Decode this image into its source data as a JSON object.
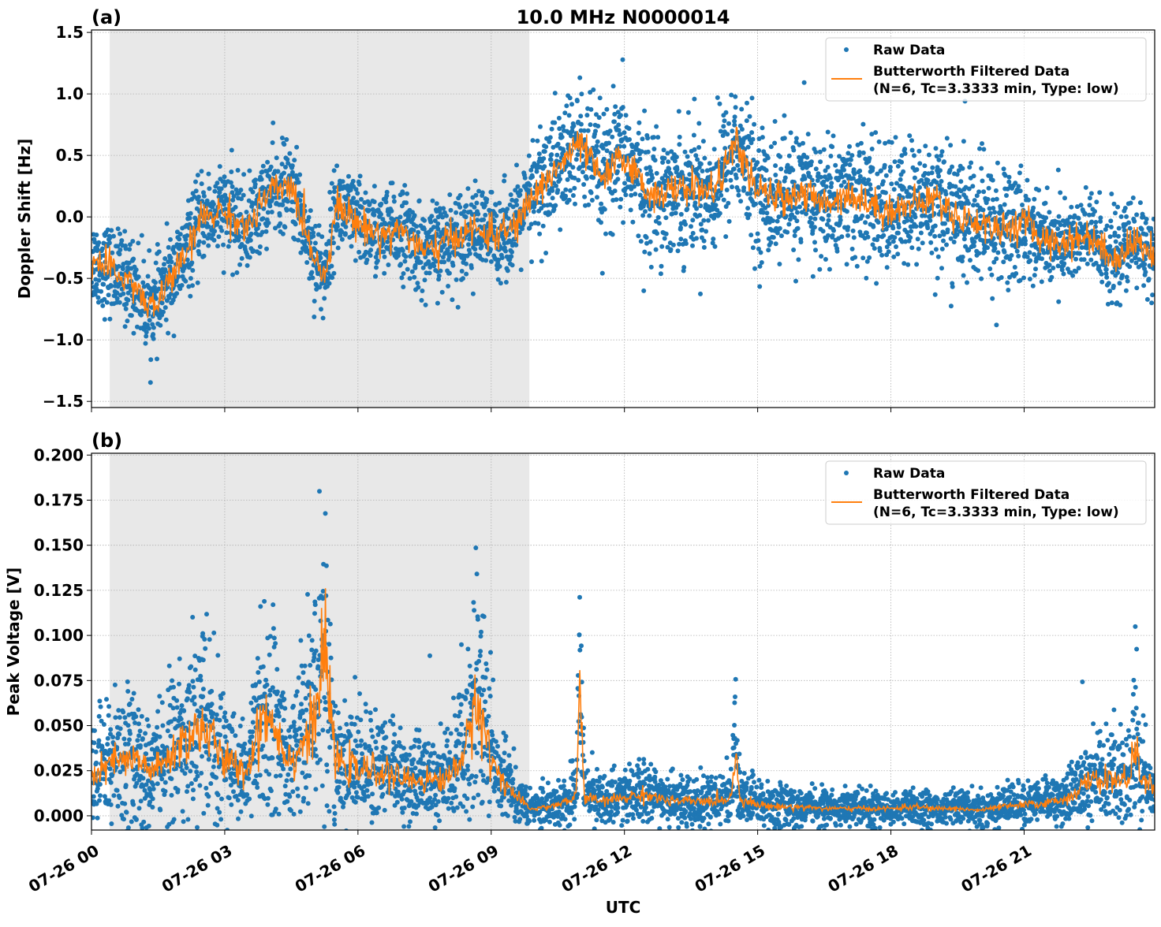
{
  "chart_data": [
    {
      "type": "scatter",
      "panel_label": "(a)",
      "title": "10.0 MHz N0000014",
      "xlabel": "",
      "ylabel": "Doppler Shift [Hz]",
      "xlim_hours_utc": [
        0,
        23.94
      ],
      "ylim": [
        -1.55,
        1.52
      ],
      "yticks": [
        -1.5,
        -1.0,
        -0.5,
        0.0,
        0.5,
        1.0,
        1.5
      ],
      "ytick_labels": [
        "−1.5",
        "−1.0",
        "−0.5",
        "0.0",
        "0.5",
        "1.0",
        "1.5"
      ],
      "grid": true,
      "shaded_span_hours_utc": [
        0.41,
        9.86
      ],
      "legend": {
        "placement": "top-right",
        "entries": [
          "Raw Data",
          "Butterworth Filtered Data",
          "(N=6, Tc=3.3333 min, Type: low)"
        ]
      },
      "raw_spread": 0.22,
      "filtered": {
        "x_hours_utc": [
          0,
          0.5,
          1,
          1.25,
          1.5,
          1.75,
          2,
          2.5,
          3,
          3.5,
          4,
          4.5,
          5,
          5.25,
          5.5,
          6,
          6.5,
          7,
          7.5,
          8,
          8.5,
          9,
          9.5,
          10,
          10.5,
          11,
          11.5,
          12,
          12.5,
          13,
          13.5,
          14,
          14.5,
          15,
          15.5,
          16,
          16.5,
          17,
          17.5,
          18,
          18.5,
          19,
          19.5,
          20,
          20.5,
          21,
          21.5,
          22,
          22.5,
          23,
          23.5,
          23.94
        ],
        "values": [
          -0.35,
          -0.45,
          -0.55,
          -0.75,
          -0.7,
          -0.5,
          -0.4,
          0.0,
          0.05,
          -0.1,
          0.2,
          0.25,
          -0.3,
          -0.5,
          0.1,
          -0.05,
          -0.15,
          -0.1,
          -0.3,
          -0.2,
          -0.1,
          -0.15,
          -0.1,
          0.2,
          0.4,
          0.6,
          0.3,
          0.5,
          0.2,
          0.2,
          0.25,
          0.2,
          0.6,
          0.2,
          0.15,
          0.2,
          0.1,
          0.2,
          0.1,
          0.05,
          0.1,
          0.15,
          0.0,
          -0.05,
          -0.1,
          -0.05,
          -0.2,
          -0.2,
          -0.15,
          -0.35,
          -0.2,
          -0.3
        ]
      },
      "series": [
        {
          "name": "Raw Data",
          "color": "#1f77b4",
          "style": "points"
        },
        {
          "name": "Butterworth Filtered Data (N=6, Tc=3.3333 min, Type: low)",
          "color": "#ff7f0e",
          "style": "line"
        }
      ]
    },
    {
      "type": "scatter",
      "panel_label": "(b)",
      "title": "",
      "xlabel": "UTC",
      "ylabel": "Peak Voltage [V]",
      "xlim_hours_utc": [
        0,
        23.94
      ],
      "ylim": [
        -0.0079,
        0.201
      ],
      "yticks": [
        0,
        0.025,
        0.05,
        0.075,
        0.1,
        0.125,
        0.15,
        0.175,
        0.2
      ],
      "ytick_labels": [
        "0.000",
        "0.025",
        "0.050",
        "0.075",
        "0.100",
        "0.125",
        "0.150",
        "0.175",
        "0.200"
      ],
      "xticks_hours_utc": [
        0,
        3,
        6,
        9,
        12,
        15,
        18,
        21
      ],
      "xtick_labels": [
        "07-26 00",
        "07-26 03",
        "07-26 06",
        "07-26 09",
        "07-26 12",
        "07-26 15",
        "07-26 18",
        "07-26 21"
      ],
      "grid": true,
      "shaded_span_hours_utc": [
        0.41,
        9.86
      ],
      "legend": {
        "placement": "top-right",
        "entries": [
          "Raw Data",
          "Butterworth Filtered Data",
          "(N=6, Tc=3.3333 min, Type: low)"
        ]
      },
      "raw_spread": 0.5,
      "filtered": {
        "x_hours_utc": [
          0,
          0.5,
          1,
          1.5,
          2,
          2.5,
          3,
          3.5,
          3.9,
          4.5,
          5,
          5.25,
          5.5,
          6,
          6.5,
          7,
          7.5,
          8,
          8.5,
          8.65,
          9,
          9.5,
          9.86,
          10,
          10.5,
          10.9,
          11,
          11.1,
          11.5,
          12,
          12.5,
          13,
          13.5,
          14,
          14.4,
          14.5,
          14.6,
          15,
          15.5,
          16,
          16.5,
          17,
          17.5,
          18,
          18.5,
          19,
          19.5,
          20,
          20.5,
          21,
          21.5,
          22,
          22.5,
          23,
          23.4,
          23.5,
          23.6,
          23.94
        ],
        "values": [
          0.02,
          0.03,
          0.03,
          0.025,
          0.04,
          0.05,
          0.03,
          0.025,
          0.06,
          0.03,
          0.05,
          0.09,
          0.03,
          0.025,
          0.025,
          0.02,
          0.02,
          0.02,
          0.04,
          0.07,
          0.03,
          0.012,
          0.004,
          0.004,
          0.006,
          0.01,
          0.07,
          0.01,
          0.008,
          0.01,
          0.012,
          0.008,
          0.008,
          0.008,
          0.01,
          0.035,
          0.01,
          0.006,
          0.005,
          0.005,
          0.004,
          0.004,
          0.004,
          0.004,
          0.005,
          0.004,
          0.004,
          0.003,
          0.005,
          0.006,
          0.007,
          0.01,
          0.02,
          0.02,
          0.02,
          0.05,
          0.02,
          0.015
        ]
      },
      "series": [
        {
          "name": "Raw Data",
          "color": "#1f77b4",
          "style": "points"
        },
        {
          "name": "Butterworth Filtered Data (N=6, Tc=3.3333 min, Type: low)",
          "color": "#ff7f0e",
          "style": "line"
        }
      ]
    }
  ]
}
